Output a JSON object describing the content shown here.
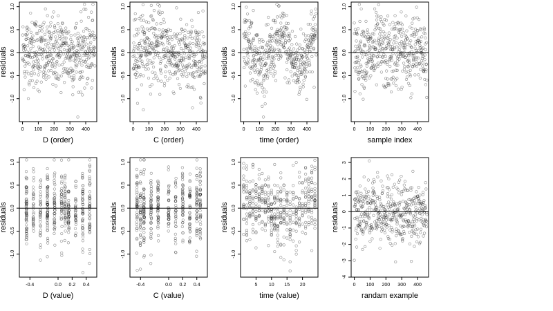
{
  "chart_data": [
    {
      "type": "scatter",
      "xlabel": "D (order)",
      "ylabel": "residuals",
      "xlim": [
        -20,
        470
      ],
      "ylim": [
        -1.5,
        1.1
      ],
      "xticks": [
        0,
        100,
        200,
        300,
        400
      ],
      "yticks": [
        -1.0,
        -0.5,
        0.0,
        0.5,
        1.0
      ],
      "hline": 0,
      "pattern": "order_d",
      "n": 460
    },
    {
      "type": "scatter",
      "xlabel": "C (order)",
      "ylabel": "residuals",
      "xlim": [
        -20,
        470
      ],
      "ylim": [
        -1.5,
        1.1
      ],
      "xticks": [
        0,
        100,
        200,
        300,
        400
      ],
      "yticks": [
        -1.0,
        -0.5,
        0.0,
        0.5,
        1.0
      ],
      "hline": 0,
      "pattern": "order_c",
      "n": 460
    },
    {
      "type": "scatter",
      "xlabel": "time (order)",
      "ylabel": "residuals",
      "xlim": [
        -20,
        470
      ],
      "ylim": [
        -1.5,
        1.1
      ],
      "xticks": [
        0,
        100,
        200,
        300,
        400
      ],
      "yticks": [
        -1.0,
        -0.5,
        0.0,
        0.5,
        1.0
      ],
      "hline": 0,
      "pattern": "order_time",
      "n": 460
    },
    {
      "type": "scatter",
      "xlabel": "sample index",
      "ylabel": "residuals",
      "xlim": [
        -20,
        470
      ],
      "ylim": [
        -1.5,
        1.1
      ],
      "xticks": [
        0,
        100,
        200,
        300,
        400
      ],
      "yticks": [
        -1.0,
        -0.5,
        0.0,
        0.5,
        1.0
      ],
      "hline": 0,
      "pattern": "order_sample",
      "n": 460
    },
    {
      "type": "scatter",
      "xlabel": "D (value)",
      "ylabel": "residuals",
      "xlim": [
        -0.55,
        0.55
      ],
      "ylim": [
        -1.5,
        1.1
      ],
      "xticks": [
        -0.4,
        0.0,
        0.2,
        0.4
      ],
      "xticklabels": [
        "-0.4",
        "0.0",
        "0.2",
        "0.4"
      ],
      "yticks": [
        -1.0,
        -0.5,
        0.0,
        0.5,
        1.0
      ],
      "hline": 0,
      "pattern": "value_d",
      "n": 460
    },
    {
      "type": "scatter",
      "xlabel": "C (value)",
      "ylabel": "residuals",
      "xlim": [
        -0.55,
        0.55
      ],
      "ylim": [
        -1.5,
        1.1
      ],
      "xticks": [
        -0.4,
        0.0,
        0.2,
        0.4
      ],
      "xticklabels": [
        "-0.4",
        "0.0",
        "0.2",
        "0.4"
      ],
      "yticks": [
        -1.0,
        -0.5,
        0.0,
        0.5,
        1.0
      ],
      "hline": 0,
      "pattern": "value_c",
      "n": 460
    },
    {
      "type": "scatter",
      "xlabel": "time (value)",
      "ylabel": "residuals",
      "xlim": [
        0,
        25
      ],
      "ylim": [
        -1.5,
        1.1
      ],
      "xticks": [
        5,
        10,
        15,
        20
      ],
      "yticks": [
        -1.0,
        -0.5,
        0.0,
        0.5,
        1.0
      ],
      "hline": 0,
      "pattern": "value_time",
      "n": 460
    },
    {
      "type": "scatter",
      "xlabel": "randam example",
      "ylabel": "residuals",
      "xlim": [
        -20,
        470
      ],
      "ylim": [
        -4,
        3.3
      ],
      "xticks": [
        0,
        100,
        200,
        300,
        400
      ],
      "yticks": [
        -4,
        -3,
        -2,
        -1,
        0,
        1,
        2,
        3
      ],
      "hline": 0,
      "pattern": "random",
      "n": 460
    }
  ]
}
